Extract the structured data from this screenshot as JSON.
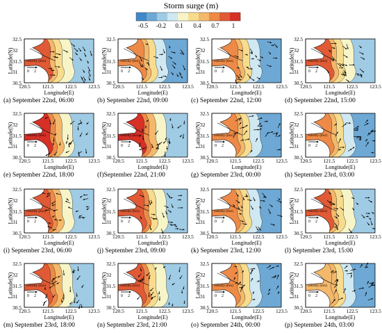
{
  "colorbar": {
    "title": "Storm surge (m)",
    "ticks": [
      "-0.5",
      "-0.2",
      "0.1",
      "0.4",
      "0.7",
      "1"
    ],
    "colors": [
      "#3f89c9",
      "#6ea8d4",
      "#9fcbe4",
      "#cfe8f1",
      "#f7f4c8",
      "#f8dc8e",
      "#f4b86a",
      "#ee8a47",
      "#e05a35",
      "#d73027"
    ]
  },
  "chart_data": {
    "type": "heatmap",
    "title": "Storm surge (m)",
    "xlabel": "Longitude(E)",
    "ylabel": "Latitude(N)",
    "xticks": [
      "120.5",
      "121.5",
      "122.5",
      "123.5"
    ],
    "yticks": [
      "30.5",
      "31",
      "31.5",
      "32",
      "32.5"
    ],
    "xlim": [
      120.5,
      123.5
    ],
    "ylim": [
      30.5,
      32.5
    ],
    "colorbar_range": [
      -0.5,
      1
    ],
    "colorbar_ticks": [
      -0.5,
      -0.2,
      0.1,
      0.4,
      0.7,
      1
    ],
    "velocity_legend": {
      "label": "velocity (m/s)",
      "ticks": [
        "0",
        "2"
      ]
    },
    "panels": [
      {
        "caption": "(a) September 22nd, 06:00",
        "surge_level": 0.55
      },
      {
        "caption": "(b) September 22nd, 09:00",
        "surge_level": 0.5
      },
      {
        "caption": "(c) September 22nd, 12:00",
        "surge_level": 0.4
      },
      {
        "caption": "(d) September 22nd, 15:00",
        "surge_level": 0.55
      },
      {
        "caption": "(e) September 22nd, 18:00",
        "surge_level": 0.9
      },
      {
        "caption": "(f)September 22nd, 21:00",
        "surge_level": 0.85
      },
      {
        "caption": "(g) September 23rd, 00:00",
        "surge_level": 0.5
      },
      {
        "caption": "(h) September 23rd, 03:00",
        "surge_level": 0.45
      },
      {
        "caption": "(i) September 23rd, 06:00",
        "surge_level": 0.75
      },
      {
        "caption": "(j) September 23rd, 09:00",
        "surge_level": 0.6
      },
      {
        "caption": "(k) September 23rd, 12:00",
        "surge_level": 0.45
      },
      {
        "caption": "(l) September 23rd, 15:00",
        "surge_level": 0.55
      },
      {
        "caption": "(m) September 23rd, 18:00",
        "surge_level": 0.75
      },
      {
        "caption": "(n) September 23rd, 21:00",
        "surge_level": 0.7
      },
      {
        "caption": "(o) September 24th, 00:00",
        "surge_level": 0.4
      },
      {
        "caption": "(p) September 24th, 03:00",
        "surge_level": 0.15
      }
    ]
  }
}
